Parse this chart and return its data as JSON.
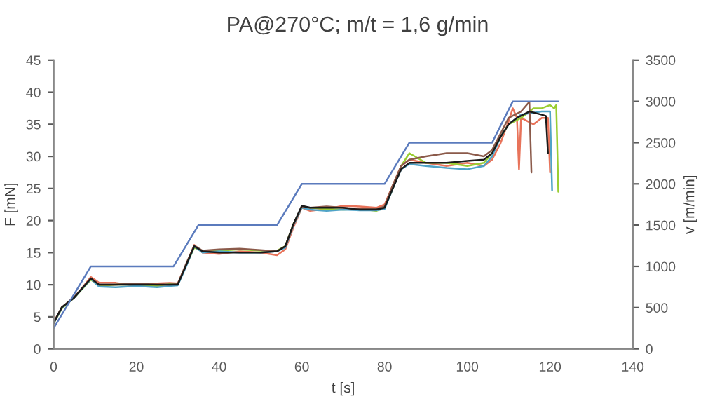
{
  "chart_data": {
    "type": "line",
    "title": "PA@270°C; m/t = 1,6 g/min",
    "xlabel": "t [s]",
    "ylabel": "F [mN]",
    "y2label": "v [m/min]",
    "xlim": [
      0,
      140
    ],
    "xticks": [
      0,
      20,
      40,
      60,
      80,
      100,
      120,
      140
    ],
    "ylim": [
      0,
      45
    ],
    "yticks": [
      0,
      5,
      10,
      15,
      20,
      25,
      30,
      35,
      40,
      45
    ],
    "y2lim": [
      0,
      3500
    ],
    "y2ticks": [
      0,
      500,
      1000,
      1500,
      2000,
      2500,
      3000,
      3500
    ],
    "grid": false,
    "legend": false,
    "marker": "none",
    "line_style": "solid",
    "series": [
      {
        "color": "#e8735a",
        "x": [
          0,
          2,
          5,
          9,
          11,
          15,
          20,
          25,
          28,
          30,
          32,
          34,
          36,
          40,
          45,
          50,
          54,
          56,
          58,
          60,
          62,
          66,
          70,
          74,
          78,
          80,
          82,
          84,
          86,
          90,
          95,
          100,
          104,
          106,
          108,
          110,
          111,
          112,
          112.5,
          113,
          116,
          118,
          119.5,
          120
        ],
        "values": [
          4.2,
          6.4,
          8,
          11.2,
          10.3,
          10.3,
          9.8,
          10.2,
          10.3,
          10.2,
          13,
          16.2,
          15,
          14.8,
          15.2,
          15,
          14.6,
          15.5,
          19,
          22,
          21.5,
          21.8,
          22.3,
          22.2,
          22,
          22.5,
          25.5,
          28.5,
          29.5,
          29,
          28.5,
          29,
          28.5,
          29.5,
          32,
          35.5,
          37.5,
          36,
          28,
          36,
          35,
          36,
          36,
          27.5
        ]
      },
      {
        "color": "#9acd32",
        "x": [
          0,
          2,
          5,
          9,
          11,
          15,
          20,
          25,
          28,
          30,
          32,
          34,
          36,
          40,
          45,
          50,
          54,
          56,
          58,
          60,
          62,
          66,
          70,
          74,
          78,
          80,
          82,
          84,
          86,
          90,
          95,
          100,
          104,
          106,
          108,
          110,
          113,
          116,
          118,
          120,
          121,
          121.5,
          122
        ],
        "values": [
          4,
          6.3,
          8,
          10.8,
          9.8,
          10,
          10,
          9.8,
          10.1,
          10,
          13,
          15.8,
          15.2,
          15.3,
          15.5,
          15.3,
          15.3,
          16,
          19.5,
          22,
          22,
          21.8,
          21.7,
          21.8,
          21.5,
          22,
          25,
          28.5,
          30.5,
          29,
          29,
          28.5,
          29,
          30.5,
          33,
          35,
          36,
          37.5,
          37.5,
          38,
          37.5,
          38,
          24.5
        ]
      },
      {
        "color": "#4fa3c7",
        "x": [
          0,
          2,
          5,
          9,
          11,
          15,
          20,
          25,
          28,
          30,
          32,
          34,
          36,
          40,
          45,
          50,
          54,
          56,
          58,
          60,
          62,
          66,
          70,
          74,
          78,
          80,
          82,
          84,
          86,
          90,
          95,
          100,
          104,
          106,
          108,
          110,
          113,
          116,
          118,
          120,
          120.5
        ],
        "values": [
          4,
          6.4,
          8,
          10.9,
          9.7,
          9.6,
          9.8,
          9.6,
          9.8,
          9.9,
          12.8,
          16,
          15,
          15.2,
          15,
          15,
          15.2,
          15.8,
          19.3,
          22,
          21.7,
          21.5,
          21.7,
          21.6,
          21.6,
          21.8,
          25,
          28,
          28.8,
          28.5,
          28.2,
          28,
          28.5,
          30,
          33,
          35,
          36.5,
          36.8,
          37,
          37,
          24.7
        ]
      },
      {
        "color": "#8b5a4a",
        "x": [
          0,
          2,
          5,
          9,
          11,
          15,
          20,
          25,
          28,
          30,
          32,
          34,
          36,
          40,
          45,
          50,
          54,
          56,
          58,
          60,
          62,
          66,
          70,
          74,
          78,
          80,
          82,
          84,
          86,
          90,
          95,
          100,
          104,
          106,
          108,
          110,
          113,
          115,
          115.5
        ],
        "values": [
          4.1,
          6.5,
          8.1,
          11,
          10,
          10,
          10.2,
          10,
          10,
          10.1,
          13.2,
          16.1,
          15.3,
          15.5,
          15.6,
          15.4,
          15.2,
          16,
          19.4,
          22.2,
          22,
          22.2,
          22,
          21.8,
          21.8,
          22.2,
          25.5,
          28.5,
          29.5,
          30,
          30.5,
          30.5,
          30,
          31,
          33.5,
          36,
          37,
          38.5,
          27.5
        ]
      },
      {
        "color": "#1a1a1a",
        "x": [
          0,
          2,
          5,
          9,
          11,
          15,
          20,
          25,
          28,
          30,
          32,
          34,
          36,
          40,
          45,
          50,
          54,
          56,
          58,
          60,
          62,
          66,
          70,
          74,
          78,
          80,
          82,
          84,
          86,
          90,
          95,
          100,
          104,
          106,
          108,
          110,
          112,
          115,
          118,
          119,
          119.5
        ],
        "values": [
          4,
          6.5,
          8,
          11,
          10,
          10,
          10,
          10,
          10,
          10,
          13,
          16,
          15.2,
          15,
          15,
          15,
          15.2,
          16,
          19.5,
          22.3,
          22,
          22,
          22,
          21.7,
          21.7,
          22,
          25,
          28,
          29,
          29,
          29,
          29.3,
          29.5,
          30.5,
          33,
          35,
          36,
          37,
          36.5,
          36.3,
          30.5
        ]
      },
      {
        "axis": "y2",
        "color": "#5b7bbd",
        "x": [
          0,
          9,
          29,
          35,
          54,
          60,
          80,
          86,
          106,
          111,
          122
        ],
        "values": [
          250,
          1000,
          1000,
          1500,
          1500,
          2000,
          2000,
          2500,
          2500,
          3000,
          3000
        ]
      }
    ]
  }
}
